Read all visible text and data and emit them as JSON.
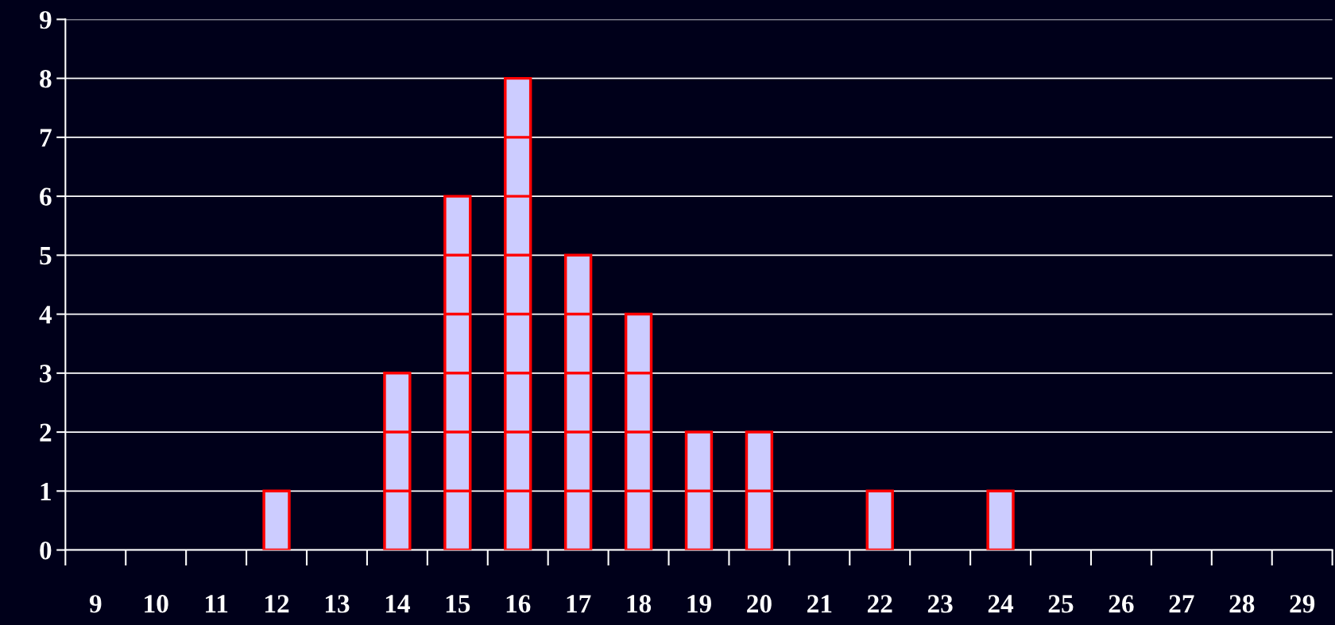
{
  "chart_data": {
    "type": "bar",
    "categories": [
      "9",
      "10",
      "11",
      "12",
      "13",
      "14",
      "15",
      "16",
      "17",
      "18",
      "19",
      "20",
      "21",
      "22",
      "23",
      "24",
      "25",
      "26",
      "27",
      "28",
      "29"
    ],
    "values": [
      0,
      0,
      0,
      1,
      0,
      3,
      6,
      8,
      5,
      4,
      2,
      2,
      0,
      1,
      0,
      1,
      0,
      0,
      0,
      0,
      0
    ],
    "color": "#ccccff",
    "ylim": [
      0,
      9
    ],
    "yticks": [
      0,
      1,
      2,
      3,
      4,
      5,
      6,
      7,
      8,
      9
    ],
    "grid": "y"
  }
}
